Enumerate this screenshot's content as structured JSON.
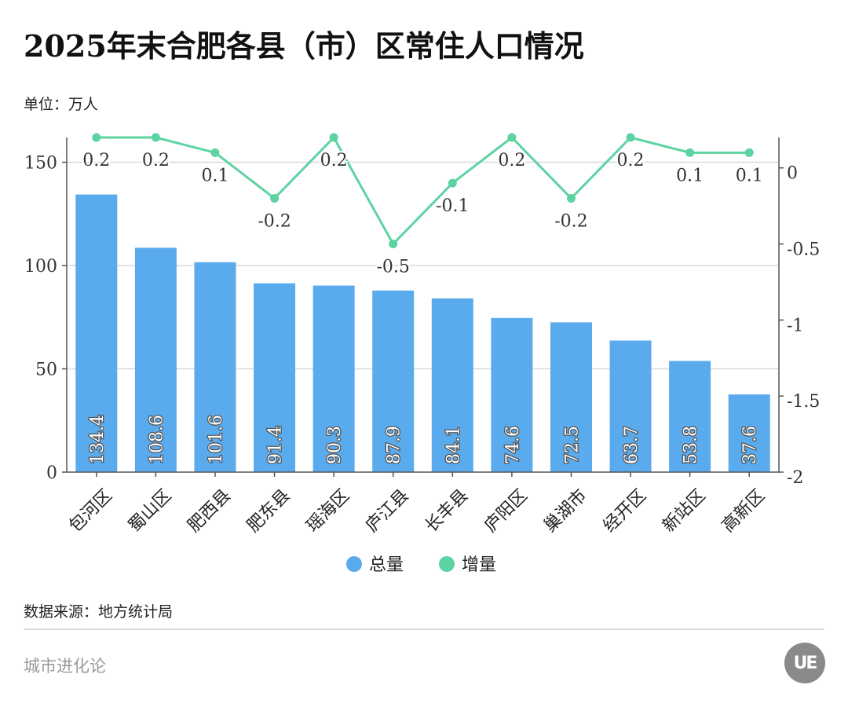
{
  "title": "2025年末合肥各县（市）区常住人口情况",
  "unit": "单位：万人",
  "source": "数据来源：地方统计局",
  "footer": "城市进化论",
  "logo_text": "UE",
  "colors": {
    "bar": "#5aabee",
    "line": "#5dd3a2",
    "grid": "#d9d9d9",
    "axis": "#555555"
  },
  "chart_data": {
    "type": "bar+line",
    "categories": [
      "包河区",
      "蜀山区",
      "肥西县",
      "肥东县",
      "瑶海区",
      "庐江县",
      "长丰县",
      "庐阳区",
      "巢湖市",
      "经开区",
      "新站区",
      "高新区"
    ],
    "series": [
      {
        "name": "总量",
        "type": "bar",
        "axis": "left",
        "values": [
          134.4,
          108.6,
          101.6,
          91.4,
          90.3,
          87.9,
          84.1,
          74.6,
          72.5,
          63.7,
          53.8,
          37.6
        ],
        "labels": [
          "134.4",
          "108.6",
          "101.6",
          "91.4",
          "90.3",
          "87.9",
          "84.1",
          "74.6",
          "72.5",
          "63.7",
          "53.8",
          "37.6"
        ]
      },
      {
        "name": "增量",
        "type": "line",
        "axis": "right",
        "values": [
          0.2,
          0.2,
          0.1,
          -0.2,
          0.2,
          -0.5,
          -0.1,
          0.2,
          -0.2,
          0.2,
          0.1,
          0.1
        ],
        "labels": [
          "0.2",
          "0.2",
          "0.1",
          "-0.2",
          "0.2",
          "-0.5",
          "-0.1",
          "0.2",
          "-0.2",
          "0.2",
          "0.1",
          "0.1"
        ]
      }
    ],
    "y_left": {
      "range": [
        0,
        162
      ],
      "ticks": [
        0,
        50,
        100,
        150
      ],
      "tick_labels": [
        "0",
        "50",
        "100",
        "150"
      ]
    },
    "y_right": {
      "range": [
        -2,
        0.2
      ],
      "ticks": [
        0,
        -0.5,
        -1,
        -1.5,
        -2
      ],
      "tick_labels": [
        "0",
        "-0.5",
        "-1",
        "-1.5",
        "-2"
      ]
    },
    "grid": true,
    "legend_position": "bottom"
  }
}
